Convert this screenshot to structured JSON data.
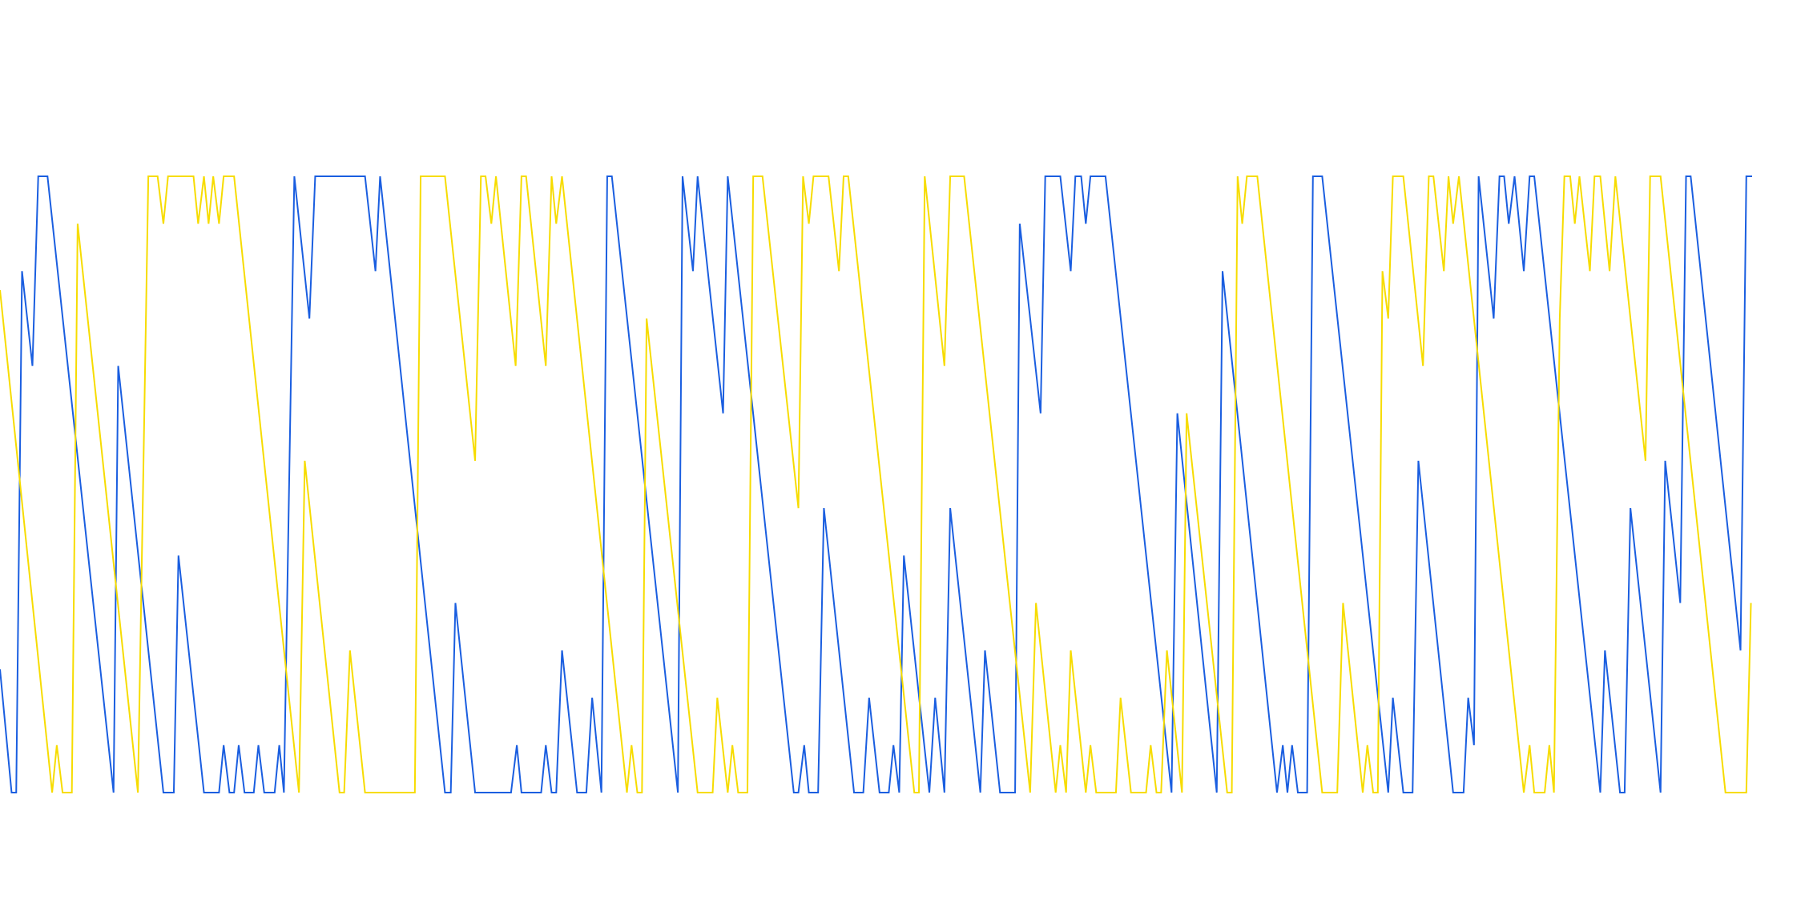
{
  "chart_data": {
    "type": "line",
    "xlim": [
      0,
      1512
    ],
    "ylim": [
      0,
      13
    ],
    "series": [
      {
        "color": "#1a5ee0",
        "x": [
          0,
          10,
          14,
          19,
          28,
          33,
          41,
          98,
          102,
          141,
          150,
          154,
          176,
          189,
          193,
          198,
          202,
          206,
          211,
          219,
          223,
          228,
          237,
          241,
          245,
          254,
          267,
          272,
          315,
          324,
          328,
          384,
          389,
          393,
          410,
          441,
          446,
          450,
          467,
          471,
          476,
          480,
          485,
          498,
          506,
          511,
          519,
          524,
          528,
          585,
          589,
          598,
          602,
          624,
          628,
          685,
          689,
          694,
          698,
          706,
          711,
          737,
          745,
          750,
          759,
          767,
          771,
          776,
          780,
          802,
          807,
          815,
          820,
          846,
          850,
          863,
          876,
          880,
          898,
          902,
          915,
          924,
          928,
          933,
          937,
          941,
          954,
          1011,
          1016,
          1050,
          1055,
          1102,
          1107,
          1111,
          1115,
          1120,
          1128,
          1133,
          1141,
          1198,
          1202,
          1211,
          1219,
          1224,
          1254,
          1263,
          1267,
          1272,
          1276,
          1289,
          1294,
          1298,
          1302,
          1307,
          1315,
          1320,
          1324,
          1381,
          1385,
          1398,
          1402,
          1407,
          1433,
          1437,
          1450,
          1455,
          1459,
          1502,
          1507,
          1512
        ],
        "values": [
          2.6,
          0,
          0,
          11,
          9,
          13,
          13,
          0,
          9,
          0,
          0,
          5,
          0,
          0,
          1,
          0,
          0,
          1,
          0,
          0,
          1,
          0,
          0,
          1,
          0,
          13,
          10,
          13,
          13,
          11,
          13,
          0,
          0,
          4,
          0,
          0,
          1,
          0,
          0,
          1,
          0,
          0,
          3,
          0,
          0,
          2,
          0,
          13,
          13,
          0,
          13,
          11,
          13,
          8,
          13,
          0,
          0,
          1,
          0,
          0,
          6,
          0,
          0,
          2,
          0,
          0,
          1,
          0,
          5,
          0,
          2,
          0,
          6,
          0,
          3,
          0,
          0,
          12,
          8,
          13,
          13,
          11,
          13,
          13,
          12,
          13,
          13,
          0,
          8,
          0,
          11,
          0,
          1,
          0,
          1,
          0,
          0,
          13,
          13,
          0,
          2,
          0,
          0,
          7,
          0,
          0,
          2,
          1,
          13,
          10,
          13,
          13,
          12,
          13,
          11,
          13,
          13,
          0,
          3,
          0,
          0,
          6,
          0,
          7,
          4,
          13,
          13,
          3,
          13,
          13
        ]
      },
      {
        "color": "#f7dc00",
        "x": [
          0,
          45,
          49,
          54,
          62,
          67,
          119,
          128,
          136,
          141,
          145,
          167,
          171,
          176,
          180,
          184,
          189,
          193,
          202,
          258,
          263,
          293,
          297,
          302,
          315,
          358,
          363,
          384,
          410,
          415,
          419,
          424,
          428,
          445,
          450,
          454,
          471,
          476,
          480,
          485,
          541,
          545,
          550,
          554,
          558,
          602,
          615,
          619,
          628,
          632,
          637,
          645,
          650,
          658,
          689,
          693,
          698,
          702,
          715,
          724,
          728,
          732,
          789,
          793,
          798,
          815,
          820,
          832,
          889,
          894,
          911,
          915,
          920,
          924,
          937,
          941,
          946,
          963,
          967,
          976,
          989,
          993,
          998,
          1002,
          1007,
          1020,
          1024,
          1059,
          1063,
          1068,
          1072,
          1076,
          1085,
          1141,
          1154,
          1159,
          1176,
          1180,
          1185,
          1189,
          1193,
          1198,
          1202,
          1211,
          1228,
          1233,
          1237,
          1246,
          1250,
          1254,
          1259,
          1315,
          1320,
          1324,
          1333,
          1337,
          1341,
          1346,
          1350,
          1355,
          1359,
          1363,
          1372,
          1376,
          1381,
          1389,
          1394,
          1420,
          1424,
          1433,
          1489,
          1507,
          1511
        ],
        "values": [
          10.6,
          0,
          1,
          0,
          0,
          12,
          0,
          13,
          13,
          12,
          13,
          13,
          12,
          13,
          12,
          13,
          12,
          13,
          13,
          0,
          7,
          0,
          0,
          3,
          0,
          0,
          13,
          13,
          7,
          13,
          13,
          12,
          13,
          9,
          13,
          13,
          9,
          13,
          12,
          13,
          0,
          1,
          0,
          0,
          10,
          0,
          0,
          2,
          0,
          1,
          0,
          0,
          13,
          13,
          6,
          13,
          12,
          13,
          13,
          11,
          13,
          13,
          0,
          0,
          13,
          9,
          13,
          13,
          0,
          4,
          0,
          1,
          0,
          3,
          0,
          1,
          0,
          0,
          2,
          0,
          0,
          1,
          0,
          0,
          3,
          0,
          8,
          0,
          0,
          13,
          12,
          13,
          13,
          0,
          0,
          4,
          0,
          1,
          0,
          0,
          11,
          10,
          13,
          13,
          9,
          13,
          13,
          11,
          13,
          12,
          13,
          0,
          1,
          0,
          0,
          1,
          0,
          10,
          13,
          13,
          12,
          13,
          11,
          13,
          13,
          11,
          13,
          7,
          13,
          13,
          0,
          0,
          4
        ]
      }
    ]
  }
}
